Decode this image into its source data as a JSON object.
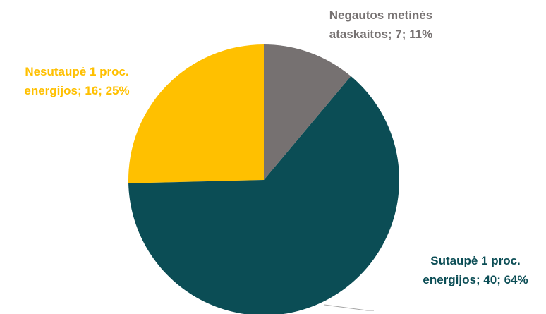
{
  "chart_data": {
    "type": "pie",
    "values": [
      7,
      40,
      16
    ],
    "value_labels": [
      "Negautos metinės ataskaitos; 7; 11%",
      "Sutaupė 1 proc. energijos; 40; 64%",
      "Nesutaupė 1 proc. energijos; 16; 25%"
    ],
    "colors": [
      "#767171",
      "#0b4d55",
      "#ffc000"
    ]
  }
}
